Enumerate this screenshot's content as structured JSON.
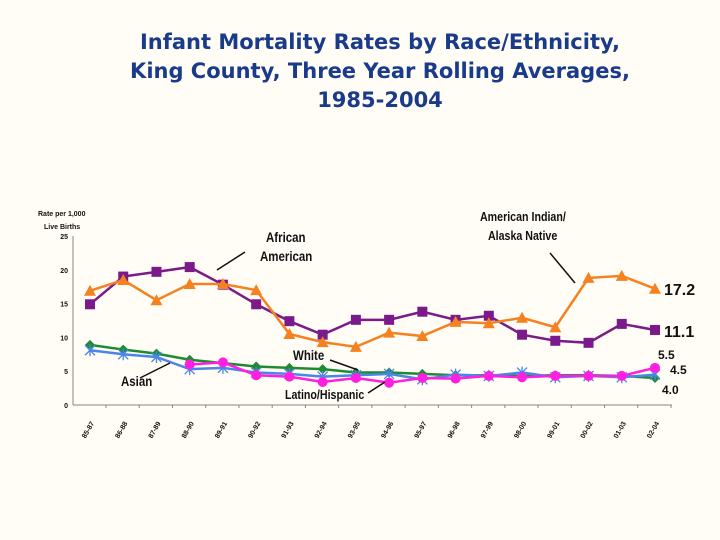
{
  "title": [
    "Infant Mortality Rates by Race/Ethnicity,",
    "King County, Three Year Rolling Averages,",
    "1985-2004"
  ],
  "chart_data": {
    "type": "line",
    "ylabel": [
      "Rate per 1,000",
      "Live Births"
    ],
    "ylim": [
      0,
      25
    ],
    "yticks": [
      0,
      5,
      10,
      15,
      20,
      25
    ],
    "categories": [
      "85-87",
      "86-88",
      "87-89",
      "88-90",
      "89-91",
      "90-92",
      "91-93",
      "92-94",
      "93-95",
      "94-96",
      "95-97",
      "96-98",
      "97-99",
      "98-00",
      "99-01",
      "00-02",
      "01-03",
      "02-04"
    ],
    "series": [
      {
        "name": "African American",
        "color": "#7b1a8a",
        "marker": "square",
        "values": [
          14.9,
          19.0,
          19.7,
          20.4,
          17.8,
          14.9,
          12.4,
          10.4,
          12.6,
          12.6,
          13.8,
          12.6,
          13.2,
          10.4,
          9.5,
          9.2,
          12.0,
          11.1
        ]
      },
      {
        "name": "American Indian/ Alaska Native",
        "color": "#f58220",
        "marker": "triangle",
        "values": [
          16.9,
          18.5,
          15.5,
          17.9,
          17.9,
          17.0,
          10.5,
          9.3,
          8.6,
          10.7,
          10.2,
          12.3,
          12.1,
          12.9,
          11.5,
          18.8,
          19.1,
          17.2
        ]
      },
      {
        "name": "White",
        "color": "#1e8a32",
        "marker": "diamond",
        "values": [
          8.9,
          8.2,
          7.6,
          6.7,
          6.2,
          5.7,
          5.5,
          5.3,
          4.8,
          4.8,
          4.6,
          4.4,
          4.4,
          4.3,
          4.4,
          4.4,
          4.3,
          4.0
        ]
      },
      {
        "name": "Asian",
        "color": "#4a86e8",
        "marker": "star",
        "values": [
          8.1,
          7.5,
          7.1,
          5.3,
          5.5,
          4.8,
          4.6,
          4.2,
          4.4,
          4.6,
          3.8,
          4.5,
          4.3,
          4.8,
          4.1,
          4.3,
          4.1,
          4.5
        ]
      },
      {
        "name": "Latino/Hispanic",
        "color": "#ff1fe0",
        "marker": "circle",
        "values": [
          null,
          null,
          null,
          6.0,
          6.3,
          4.4,
          4.2,
          3.4,
          4.0,
          3.3,
          4.0,
          3.9,
          4.3,
          4.1,
          4.3,
          4.3,
          4.3,
          5.5
        ]
      }
    ],
    "end_labels": [
      "17.2",
      "11.1",
      "5.5",
      "4.5",
      "4.0"
    ],
    "grid": false
  }
}
